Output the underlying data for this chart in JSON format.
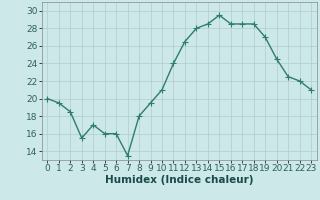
{
  "x": [
    0,
    1,
    2,
    3,
    4,
    5,
    6,
    7,
    8,
    9,
    10,
    11,
    12,
    13,
    14,
    15,
    16,
    17,
    18,
    19,
    20,
    21,
    22,
    23
  ],
  "y": [
    20,
    19.5,
    18.5,
    15.5,
    17,
    16,
    16,
    13.5,
    18,
    19.5,
    21,
    24,
    26.5,
    28,
    28.5,
    29.5,
    28.5,
    28.5,
    28.5,
    27,
    24.5,
    22.5,
    22,
    21
  ],
  "line_color": "#2e7d6e",
  "marker_color": "#2e7d6e",
  "bg_color": "#cce8e8",
  "grid_color": "#b0cccc",
  "xlabel": "Humidex (Indice chaleur)",
  "xlim": [
    -0.5,
    23.5
  ],
  "ylim": [
    13,
    31
  ],
  "yticks": [
    14,
    16,
    18,
    20,
    22,
    24,
    26,
    28,
    30
  ],
  "xticks": [
    0,
    1,
    2,
    3,
    4,
    5,
    6,
    7,
    8,
    9,
    10,
    11,
    12,
    13,
    14,
    15,
    16,
    17,
    18,
    19,
    20,
    21,
    22,
    23
  ],
  "tick_fontsize": 6.5,
  "xlabel_fontsize": 7.5,
  "line_width": 1.0,
  "marker_size": 2.5
}
